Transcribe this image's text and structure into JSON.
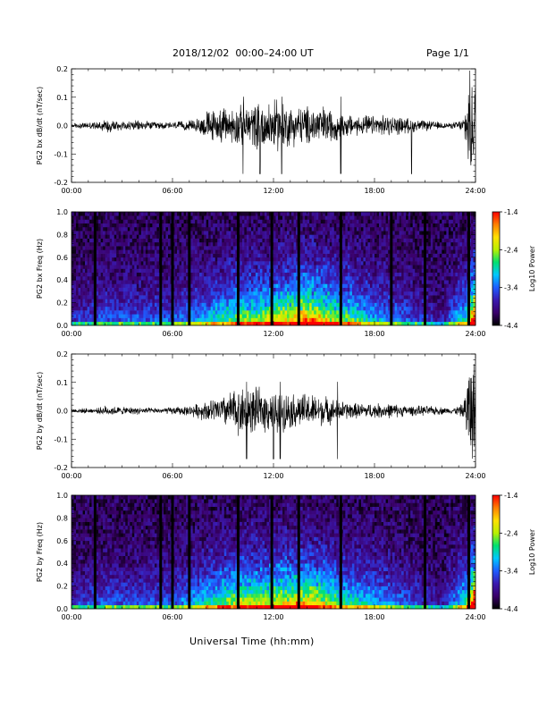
{
  "header": {
    "title": "2018/12/02  00:00–24:00 UT",
    "page": "Page 1/1"
  },
  "xaxis_label": "Universal Time (hh:mm)",
  "colors": {
    "colormap": [
      "#000000",
      "#3a006a",
      "#3a1ab0",
      "#1e5cff",
      "#00c8ff",
      "#00e070",
      "#b8f000",
      "#ffe000",
      "#ff8000",
      "#ff0000"
    ],
    "trace": "#000000",
    "frame": "#000000"
  },
  "chart_data": [
    {
      "type": "line",
      "ylabel": "PG2 bx dB/dt (nT/sec)",
      "xlim": [
        0,
        24
      ],
      "ylim": [
        -0.2,
        0.2
      ],
      "xticks": [
        "00:00",
        "06:00",
        "12:00",
        "18:00",
        "24:00"
      ],
      "yticks": [
        "-0.2",
        "-0.1",
        "0.0",
        "0.1",
        "0.2"
      ],
      "envelope": {
        "x_hours": [
          0,
          1.5,
          2,
          3,
          4,
          5,
          6,
          7,
          7.5,
          8,
          9,
          10,
          11,
          12,
          12.5,
          13,
          14,
          15,
          16,
          17,
          18,
          19,
          20,
          21,
          22,
          22.5,
          23,
          23.3,
          23.6,
          23.8,
          24
        ],
        "amplitude": [
          0.01,
          0.015,
          0.03,
          0.02,
          0.02,
          0.015,
          0.015,
          0.02,
          0.03,
          0.06,
          0.07,
          0.08,
          0.09,
          0.1,
          0.1,
          0.08,
          0.08,
          0.08,
          0.05,
          0.04,
          0.04,
          0.04,
          0.03,
          0.02,
          0.015,
          0.01,
          0.02,
          0.03,
          0.2,
          0.2,
          0.2
        ]
      },
      "spikes_hours": [
        10.2,
        11.2,
        12.5,
        16.0,
        20.2
      ]
    },
    {
      "type": "heatmap",
      "ylabel": "PG2 bx Freq (Hz)",
      "colorbar_label": "Log10 Power",
      "colorbar_ticks": [
        "-1.4",
        "-2.4",
        "-3.4",
        "-4.4"
      ],
      "colorbar_range": [
        -4.4,
        -1.4
      ],
      "xlim": [
        0,
        24
      ],
      "ylim": [
        0,
        1.0
      ],
      "xticks": [
        "00:00",
        "06:00",
        "12:00",
        "18:00",
        "24:00"
      ],
      "yticks": [
        "0.0",
        "0.2",
        "0.4",
        "0.6",
        "0.8",
        "1.0"
      ],
      "activity_hours": [
        0,
        2,
        4,
        6,
        8,
        10,
        12,
        13,
        14,
        15,
        16,
        18,
        20,
        22,
        23.5,
        24
      ],
      "activity_level": [
        0.15,
        0.2,
        0.2,
        0.2,
        0.3,
        0.45,
        0.5,
        0.55,
        0.65,
        0.55,
        0.45,
        0.3,
        0.2,
        0.1,
        0.4,
        0.9
      ],
      "gaps_hours": [
        1.4,
        5.3,
        6.0,
        7.0,
        9.9,
        11.9,
        13.5,
        16.0,
        19.0,
        21.0,
        23.6
      ]
    },
    {
      "type": "line",
      "ylabel": "PG2 by dB/dt (nT/sec)",
      "xlim": [
        0,
        24
      ],
      "ylim": [
        -0.2,
        0.2
      ],
      "xticks": [
        "00:00",
        "06:00",
        "12:00",
        "18:00",
        "24:00"
      ],
      "yticks": [
        "-0.2",
        "-0.1",
        "0.0",
        "0.1",
        "0.2"
      ],
      "envelope": {
        "x_hours": [
          0,
          1.5,
          2,
          3,
          4,
          5,
          6,
          7,
          7.5,
          8,
          9,
          9.5,
          10,
          11,
          12,
          12.5,
          13,
          14,
          15,
          16,
          17,
          18,
          19,
          20,
          21,
          22,
          22.5,
          23,
          23.3,
          23.6,
          23.8,
          24
        ],
        "amplitude": [
          0.01,
          0.01,
          0.02,
          0.015,
          0.015,
          0.01,
          0.015,
          0.02,
          0.03,
          0.04,
          0.06,
          0.08,
          0.1,
          0.09,
          0.08,
          0.08,
          0.07,
          0.07,
          0.06,
          0.04,
          0.03,
          0.03,
          0.03,
          0.02,
          0.02,
          0.015,
          0.01,
          0.02,
          0.03,
          0.2,
          0.2,
          0.2
        ]
      },
      "spikes_hours": [
        10.4,
        12.0,
        12.4,
        15.8
      ]
    },
    {
      "type": "heatmap",
      "ylabel": "PG2 by Freq (Hz)",
      "colorbar_label": "Log10 Power",
      "colorbar_ticks": [
        "-1.4",
        "-2.4",
        "-3.4",
        "-4.4"
      ],
      "colorbar_range": [
        -4.4,
        -1.4
      ],
      "xlim": [
        0,
        24
      ],
      "ylim": [
        0,
        1.0
      ],
      "xticks": [
        "00:00",
        "06:00",
        "12:00",
        "18:00",
        "24:00"
      ],
      "yticks": [
        "0.0",
        "0.2",
        "0.4",
        "0.6",
        "0.8",
        "1.0"
      ],
      "activity_hours": [
        0,
        2,
        4,
        6,
        8,
        10,
        12,
        13,
        14,
        15,
        16,
        18,
        20,
        22,
        23.5,
        24
      ],
      "activity_level": [
        0.15,
        0.2,
        0.2,
        0.2,
        0.35,
        0.5,
        0.5,
        0.55,
        0.6,
        0.5,
        0.4,
        0.3,
        0.2,
        0.1,
        0.4,
        0.9
      ],
      "gaps_hours": [
        1.4,
        5.3,
        6.0,
        7.0,
        9.9,
        11.9,
        13.5,
        16.0,
        21.0,
        23.6
      ]
    }
  ]
}
